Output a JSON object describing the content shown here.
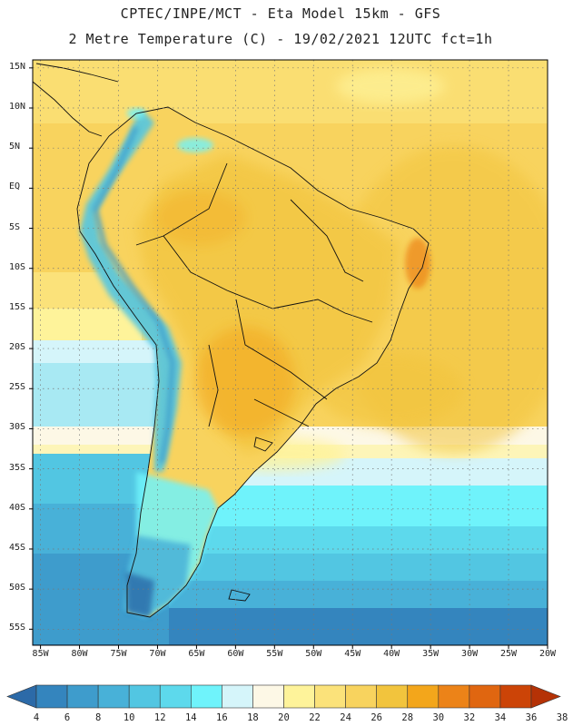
{
  "header": {
    "line1": "CPTEC/INPE/MCT -  Eta Model 15km - GFS",
    "line2": "2 Metre Temperature (C) - 19/02/2021 12UTC fct=1h"
  },
  "map": {
    "lat_labels": [
      "15N",
      "10N",
      "5N",
      "EQ",
      "5S",
      "10S",
      "15S",
      "20S",
      "25S",
      "30S",
      "35S",
      "40S",
      "45S",
      "50S",
      "55S"
    ],
    "lon_labels": [
      "85W",
      "80W",
      "75W",
      "70W",
      "65W",
      "60W",
      "55W",
      "50W",
      "45W",
      "40W",
      "35W",
      "30W",
      "25W",
      "20W"
    ],
    "lat_range": [
      -57,
      16
    ],
    "lon_range": [
      -86,
      -20
    ],
    "grid": "dotted"
  },
  "colorbar": {
    "labels": [
      "4",
      "6",
      "8",
      "10",
      "12",
      "14",
      "16",
      "18",
      "20",
      "22",
      "24",
      "26",
      "28",
      "30",
      "32",
      "34",
      "36",
      "38"
    ],
    "colors": [
      "#2c6aa8",
      "#3485be",
      "#3e9ccc",
      "#48b1d8",
      "#52c6e2",
      "#5dd9ec",
      "#6ff3fb",
      "#d5f5fa",
      "#fdf8e6",
      "#fef39a",
      "#fbe27a",
      "#f8d35e",
      "#f2c43d",
      "#f3a61b",
      "#ec8318",
      "#e06610",
      "#cc4407",
      "#b53206"
    ]
  }
}
